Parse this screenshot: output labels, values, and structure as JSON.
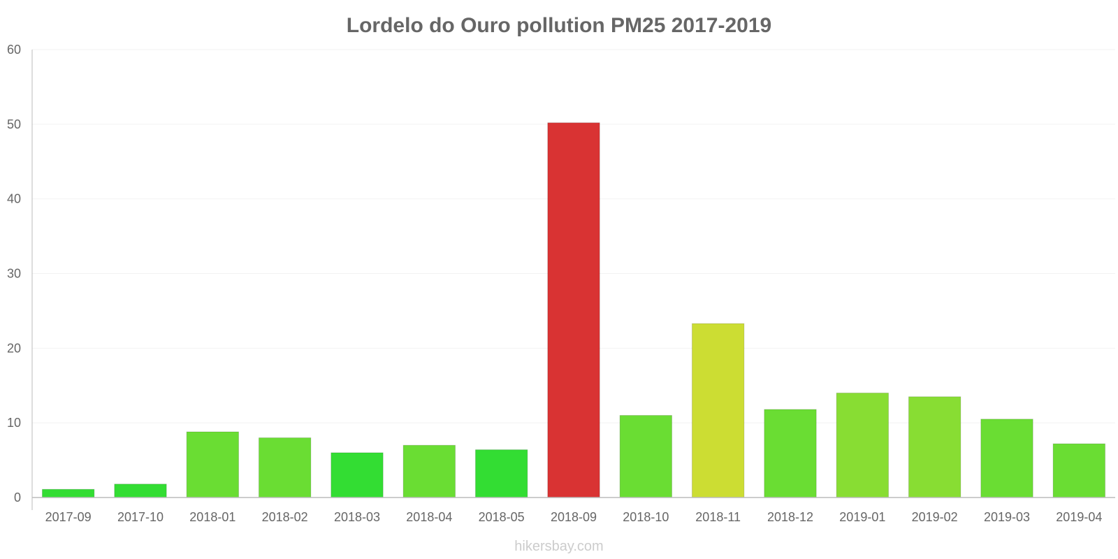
{
  "chart_data": {
    "type": "bar",
    "title": "Lordelo do Ouro pollution PM25 2017-2019",
    "xlabel": "",
    "ylabel": "",
    "ylim": [
      0,
      60
    ],
    "yticks": [
      0,
      10,
      20,
      30,
      40,
      50,
      60
    ],
    "grid": true,
    "categories": [
      "2017-09",
      "2017-10",
      "2018-01",
      "2018-02",
      "2018-03",
      "2018-04",
      "2018-05",
      "2018-09",
      "2018-10",
      "2018-11",
      "2018-12",
      "2019-01",
      "2019-02",
      "2019-03",
      "2019-04"
    ],
    "values": [
      1.1,
      1.8,
      8.8,
      8.0,
      6.0,
      7.0,
      6.4,
      50.2,
      11.0,
      23.3,
      11.8,
      14.0,
      13.5,
      10.5,
      7.2
    ],
    "colors": [
      "#33dd33",
      "#33dd33",
      "#6add33",
      "#6add33",
      "#33dd33",
      "#6add33",
      "#33dd33",
      "#d93333",
      "#6add33",
      "#ccdd33",
      "#6add33",
      "#88dd33",
      "#88dd33",
      "#6add33",
      "#6add33"
    ]
  },
  "watermark": "hikersbay.com"
}
